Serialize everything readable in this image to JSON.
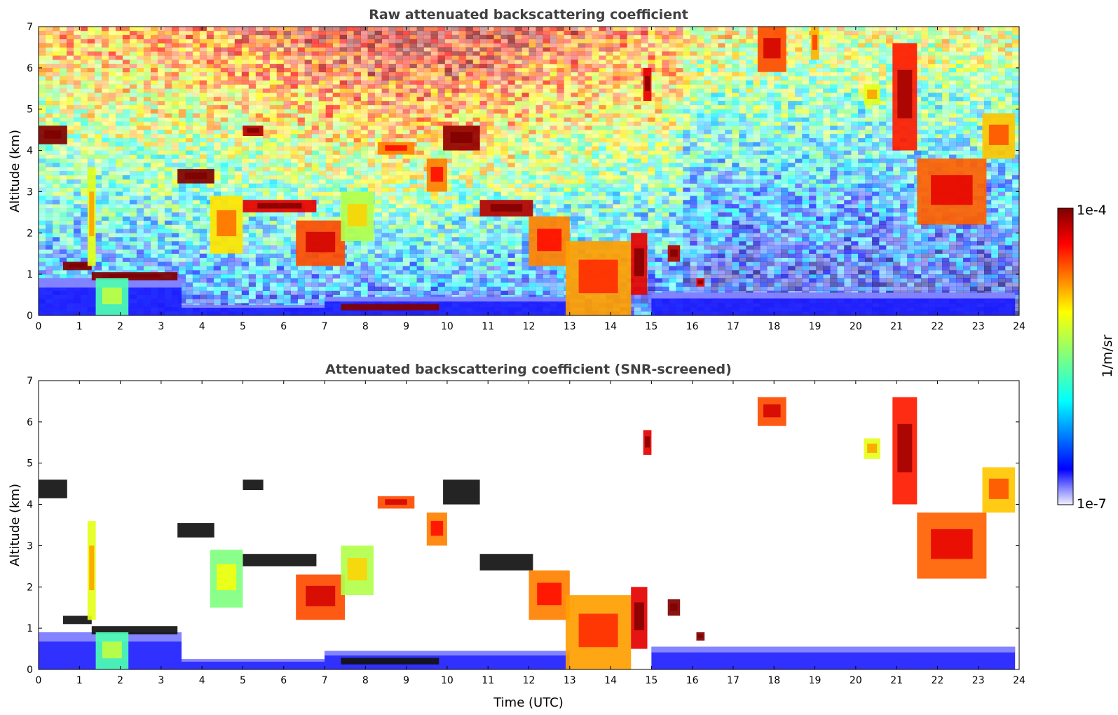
{
  "chart_data": [
    {
      "type": "heatmap",
      "title": "Raw attenuated backscattering coefficient",
      "xlabel": "",
      "ylabel": "Altitude (km)",
      "xlim": [
        0,
        24
      ],
      "ylim": [
        0,
        7
      ],
      "x_ticks": [
        "0",
        "1",
        "2",
        "3",
        "4",
        "5",
        "6",
        "7",
        "8",
        "9",
        "10",
        "11",
        "12",
        "13",
        "14",
        "15",
        "16",
        "17",
        "18",
        "19",
        "20",
        "21",
        "22",
        "23",
        "24"
      ],
      "y_ticks": [
        "0",
        "1",
        "2",
        "3",
        "4",
        "5",
        "6",
        "7"
      ],
      "noise": "high",
      "features": [
        {
          "t0": 0.0,
          "t1": 0.7,
          "z0": 4.15,
          "z1": 4.6,
          "level": 1.0
        },
        {
          "t0": 0.6,
          "t1": 1.3,
          "z0": 1.1,
          "z1": 1.3,
          "level": 1.0
        },
        {
          "t0": 1.3,
          "t1": 3.4,
          "z0": 0.85,
          "z1": 1.05,
          "level": 1.0
        },
        {
          "t0": 1.4,
          "t1": 2.2,
          "z0": 0.0,
          "z1": 0.9,
          "level": 0.45
        },
        {
          "t0": 1.2,
          "t1": 1.4,
          "z0": 1.2,
          "z1": 3.6,
          "level": 0.6
        },
        {
          "t0": 3.4,
          "t1": 4.3,
          "z0": 3.2,
          "z1": 3.55,
          "level": 1.0
        },
        {
          "t0": 4.2,
          "t1": 5.0,
          "z0": 1.5,
          "z1": 2.9,
          "level": 0.65
        },
        {
          "t0": 5.0,
          "t1": 5.5,
          "z0": 4.35,
          "z1": 4.6,
          "level": 0.95
        },
        {
          "t0": 5.0,
          "t1": 6.8,
          "z0": 2.5,
          "z1": 2.8,
          "level": 0.9
        },
        {
          "t0": 6.3,
          "t1": 7.5,
          "z0": 1.2,
          "z1": 2.3,
          "level": 0.8
        },
        {
          "t0": 7.4,
          "t1": 8.2,
          "z0": 1.8,
          "z1": 3.0,
          "level": 0.55
        },
        {
          "t0": 7.4,
          "t1": 9.8,
          "z0": 0.12,
          "z1": 0.28,
          "level": 1.0
        },
        {
          "t0": 8.3,
          "t1": 9.2,
          "z0": 3.9,
          "z1": 4.2,
          "level": 0.75
        },
        {
          "t0": 9.5,
          "t1": 10.0,
          "z0": 3.0,
          "z1": 3.8,
          "level": 0.75
        },
        {
          "t0": 9.9,
          "t1": 10.8,
          "z0": 4.0,
          "z1": 4.6,
          "level": 0.98
        },
        {
          "t0": 10.8,
          "t1": 12.1,
          "z0": 2.4,
          "z1": 2.8,
          "level": 0.95
        },
        {
          "t0": 12.0,
          "t1": 13.0,
          "z0": 1.2,
          "z1": 2.4,
          "level": 0.75
        },
        {
          "t0": 12.9,
          "t1": 14.5,
          "z0": 0.0,
          "z1": 1.8,
          "level": 0.72
        },
        {
          "t0": 14.5,
          "t1": 14.9,
          "z0": 0.5,
          "z1": 2.0,
          "level": 0.9
        },
        {
          "t0": 14.8,
          "t1": 15.0,
          "z0": 5.2,
          "z1": 6.0,
          "level": 0.9
        },
        {
          "t0": 15.4,
          "t1": 15.7,
          "z0": 1.3,
          "z1": 1.7,
          "level": 0.95
        },
        {
          "t0": 16.1,
          "t1": 16.3,
          "z0": 0.7,
          "z1": 0.9,
          "level": 0.9
        },
        {
          "t0": 17.6,
          "t1": 18.3,
          "z0": 5.9,
          "z1": 7.0,
          "level": 0.8
        },
        {
          "t0": 18.9,
          "t1": 19.1,
          "z0": 6.2,
          "z1": 7.0,
          "level": 0.7
        },
        {
          "t0": 20.2,
          "t1": 20.6,
          "z0": 5.1,
          "z1": 5.6,
          "level": 0.6
        },
        {
          "t0": 20.9,
          "t1": 21.5,
          "z0": 4.0,
          "z1": 6.6,
          "level": 0.85
        },
        {
          "t0": 21.5,
          "t1": 23.2,
          "z0": 2.2,
          "z1": 3.8,
          "level": 0.78
        },
        {
          "t0": 23.1,
          "t1": 23.9,
          "z0": 3.8,
          "z1": 4.9,
          "level": 0.68
        }
      ],
      "boundary_layer": [
        {
          "t0": 0.0,
          "t1": 3.5,
          "z1": 0.9
        },
        {
          "t0": 3.5,
          "t1": 7.0,
          "z1": 0.25
        },
        {
          "t0": 7.0,
          "t1": 13.0,
          "z1": 0.45
        },
        {
          "t0": 15.0,
          "t1": 23.9,
          "z1": 0.55
        }
      ]
    },
    {
      "type": "heatmap",
      "title": "Attenuated backscattering coefficient (SNR-screened)",
      "xlabel": "Time (UTC)",
      "ylabel": "Altitude (km)",
      "xlim": [
        0,
        24
      ],
      "ylim": [
        0,
        7
      ],
      "x_ticks": [
        "0",
        "1",
        "2",
        "3",
        "4",
        "5",
        "6",
        "7",
        "8",
        "9",
        "10",
        "11",
        "12",
        "13",
        "14",
        "15",
        "16",
        "17",
        "18",
        "19",
        "20",
        "21",
        "22",
        "23",
        "24"
      ],
      "y_ticks": [
        "0",
        "1",
        "2",
        "3",
        "4",
        "5",
        "6",
        "7"
      ],
      "noise": "none",
      "features": [
        {
          "t0": 0.0,
          "t1": 0.7,
          "z0": 4.15,
          "z1": 4.6,
          "level": 1.1
        },
        {
          "t0": 0.6,
          "t1": 1.3,
          "z0": 1.1,
          "z1": 1.3,
          "level": 1.1
        },
        {
          "t0": 1.3,
          "t1": 3.4,
          "z0": 0.85,
          "z1": 1.05,
          "level": 1.1
        },
        {
          "t0": 1.4,
          "t1": 2.2,
          "z0": 0.0,
          "z1": 0.9,
          "level": 0.45
        },
        {
          "t0": 1.2,
          "t1": 1.4,
          "z0": 1.2,
          "z1": 3.6,
          "level": 0.6
        },
        {
          "t0": 3.4,
          "t1": 4.3,
          "z0": 3.2,
          "z1": 3.55,
          "level": 1.1
        },
        {
          "t0": 4.2,
          "t1": 5.0,
          "z0": 1.5,
          "z1": 2.9,
          "level": 0.5
        },
        {
          "t0": 5.0,
          "t1": 5.5,
          "z0": 4.35,
          "z1": 4.6,
          "level": 1.1
        },
        {
          "t0": 5.0,
          "t1": 6.8,
          "z0": 2.5,
          "z1": 2.8,
          "level": 1.1
        },
        {
          "t0": 6.3,
          "t1": 7.5,
          "z0": 1.2,
          "z1": 2.3,
          "level": 0.8
        },
        {
          "t0": 7.4,
          "t1": 8.2,
          "z0": 1.8,
          "z1": 3.0,
          "level": 0.55
        },
        {
          "t0": 7.4,
          "t1": 9.8,
          "z0": 0.12,
          "z1": 0.28,
          "level": 1.1
        },
        {
          "t0": 8.3,
          "t1": 9.2,
          "z0": 3.9,
          "z1": 4.2,
          "level": 0.8
        },
        {
          "t0": 9.5,
          "t1": 10.0,
          "z0": 3.0,
          "z1": 3.8,
          "level": 0.75
        },
        {
          "t0": 9.9,
          "t1": 10.8,
          "z0": 4.0,
          "z1": 4.6,
          "level": 1.1
        },
        {
          "t0": 10.8,
          "t1": 12.1,
          "z0": 2.4,
          "z1": 2.8,
          "level": 1.1
        },
        {
          "t0": 12.0,
          "t1": 13.0,
          "z0": 1.2,
          "z1": 2.4,
          "level": 0.75
        },
        {
          "t0": 12.9,
          "t1": 14.5,
          "z0": 0.0,
          "z1": 1.8,
          "level": 0.72
        },
        {
          "t0": 14.5,
          "t1": 14.9,
          "z0": 0.5,
          "z1": 2.0,
          "level": 0.9
        },
        {
          "t0": 14.8,
          "t1": 15.0,
          "z0": 5.2,
          "z1": 5.8,
          "level": 0.9
        },
        {
          "t0": 15.4,
          "t1": 15.7,
          "z0": 1.3,
          "z1": 1.7,
          "level": 1.0
        },
        {
          "t0": 16.1,
          "t1": 16.3,
          "z0": 0.7,
          "z1": 0.9,
          "level": 1.0
        },
        {
          "t0": 17.6,
          "t1": 18.3,
          "z0": 5.9,
          "z1": 6.6,
          "level": 0.8
        },
        {
          "t0": 20.2,
          "t1": 20.6,
          "z0": 5.1,
          "z1": 5.6,
          "level": 0.6
        },
        {
          "t0": 20.9,
          "t1": 21.5,
          "z0": 4.0,
          "z1": 6.6,
          "level": 0.85
        },
        {
          "t0": 21.5,
          "t1": 23.2,
          "z0": 2.2,
          "z1": 3.8,
          "level": 0.78
        },
        {
          "t0": 23.1,
          "t1": 23.9,
          "z0": 3.8,
          "z1": 4.9,
          "level": 0.68
        }
      ],
      "boundary_layer": [
        {
          "t0": 0.0,
          "t1": 3.5,
          "z1": 0.9
        },
        {
          "t0": 3.5,
          "t1": 7.0,
          "z1": 0.25
        },
        {
          "t0": 7.0,
          "t1": 13.0,
          "z1": 0.45
        },
        {
          "t0": 15.0,
          "t1": 23.9,
          "z1": 0.55
        }
      ]
    }
  ],
  "colorbar": {
    "max_label": "1e-4",
    "min_label": "1e-7",
    "unit_label": "1/m/sr",
    "colormap": "jet",
    "low_color": "#e0e0f8"
  }
}
